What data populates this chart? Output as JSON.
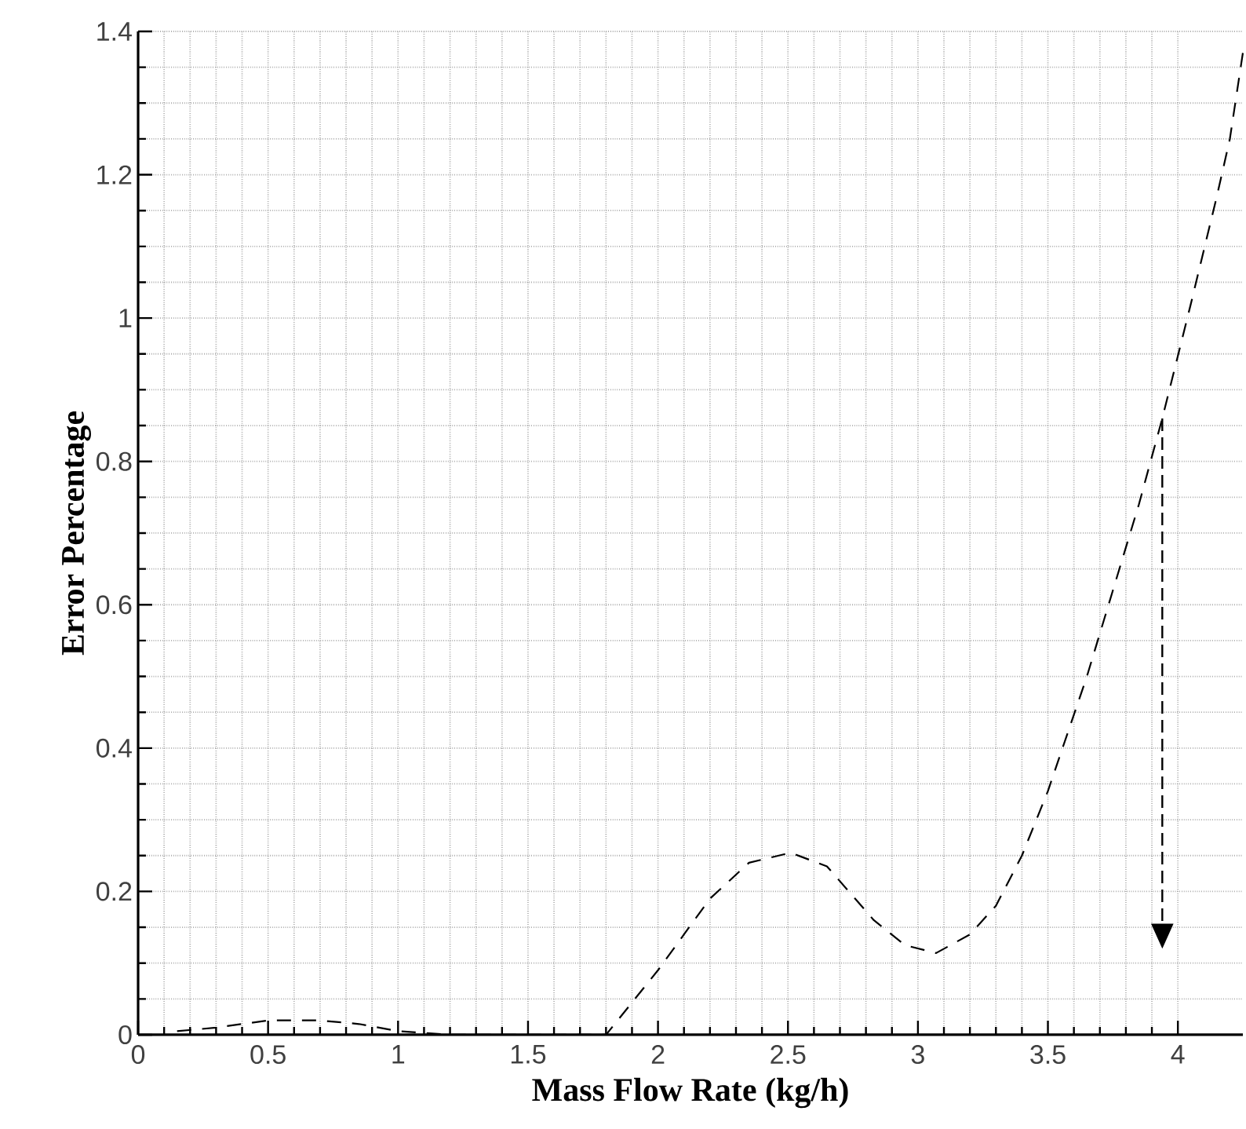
{
  "chart_data": {
    "type": "line",
    "xlabel": "Mass Flow Rate (kg/h)",
    "ylabel": "Error Percentage",
    "xlim": [
      0,
      4.25
    ],
    "ylim": [
      0,
      1.4
    ],
    "xticks": [
      0,
      0.5,
      1,
      1.5,
      2,
      2.5,
      3,
      3.5,
      4
    ],
    "yticks": [
      0,
      0.2,
      0.4,
      0.6,
      0.8,
      1,
      1.2,
      1.4
    ],
    "grid": true,
    "line_style": "dashed",
    "marker": "none",
    "series": [
      {
        "color": "#000000",
        "x": [
          0.15,
          0.3,
          0.5,
          0.7,
          0.85,
          1.0,
          1.2,
          1.5,
          1.8,
          1.9,
          2.0,
          2.1,
          2.2,
          2.35,
          2.51,
          2.65,
          2.83,
          2.95,
          3.07,
          3.2,
          3.3,
          3.4,
          3.5,
          3.65,
          3.75,
          3.85,
          3.94,
          4.05,
          4.15,
          4.2,
          4.25
        ],
        "values": [
          0.005,
          0.01,
          0.02,
          0.02,
          0.015,
          0.005,
          0,
          0,
          0,
          0.045,
          0.09,
          0.14,
          0.19,
          0.24,
          0.254,
          0.235,
          0.16,
          0.125,
          0.114,
          0.14,
          0.18,
          0.25,
          0.34,
          0.5,
          0.62,
          0.74,
          0.86,
          1.02,
          1.17,
          1.25,
          1.37
        ]
      }
    ]
  }
}
